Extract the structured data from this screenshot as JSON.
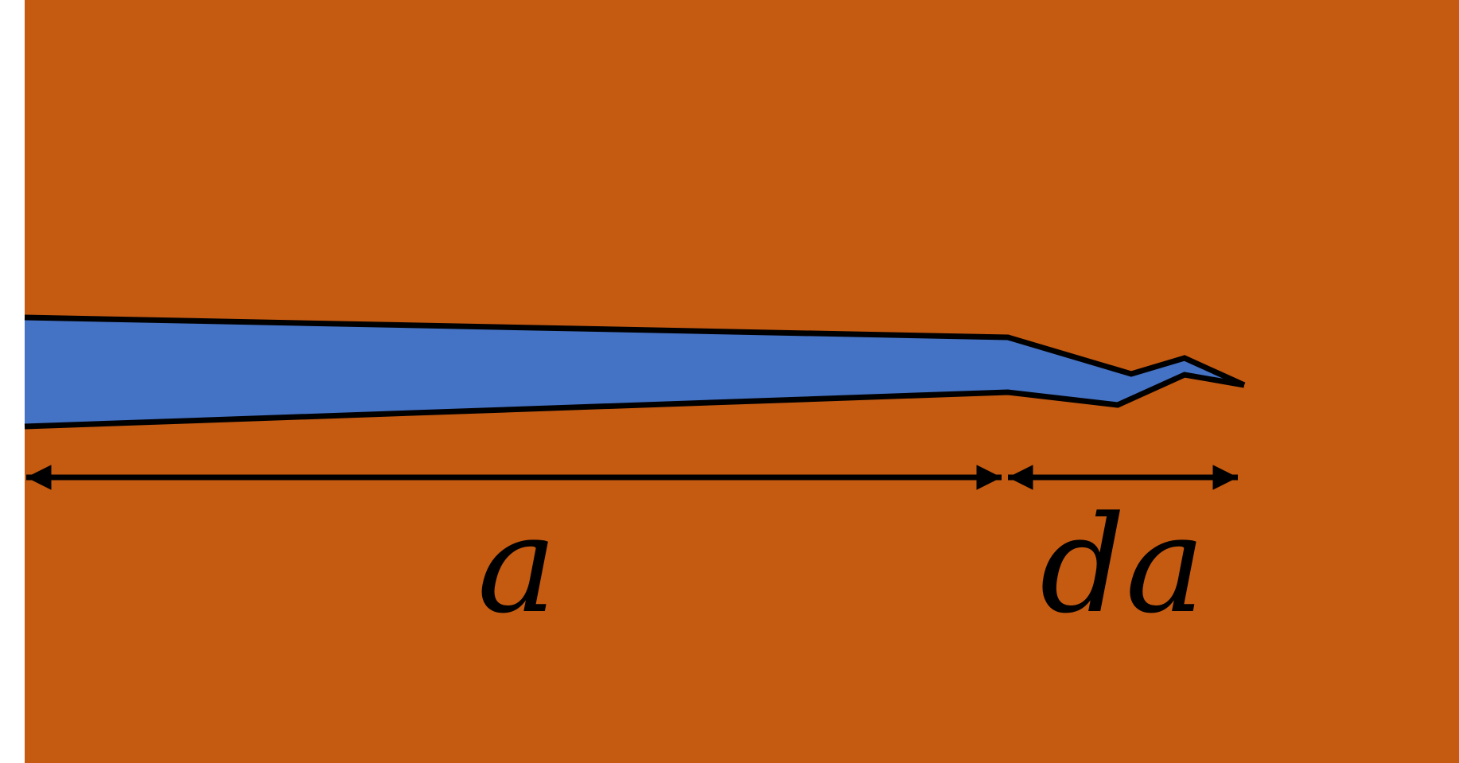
{
  "colors": {
    "page_background": "#ffffff",
    "material": "#c55a11",
    "crack_fill": "#4472c4",
    "outline": "#000000"
  },
  "labels": {
    "crack_length": "a",
    "crack_increment": "da"
  }
}
